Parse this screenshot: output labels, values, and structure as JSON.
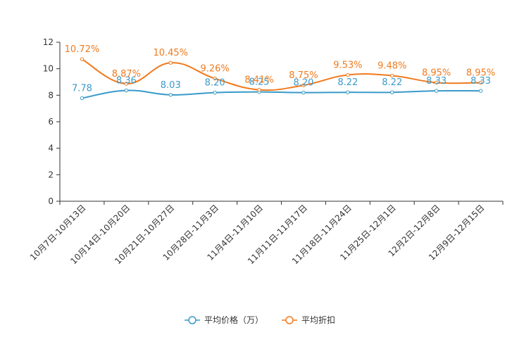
{
  "chart_data": {
    "type": "line",
    "title": "",
    "xlabel": "",
    "ylabel": "",
    "ylim": [
      0,
      12
    ],
    "yticks": [
      0,
      2,
      4,
      6,
      8,
      10,
      12
    ],
    "grid": false,
    "legend_position": "bottom-center",
    "categories": [
      "10月7日-10月13日",
      "10月14日-10月20日",
      "10月21日-10月27日",
      "10月28日-11月3日",
      "11月4日-11月10日",
      "11月11日-11月17日",
      "11月18日-11月24日",
      "11月25日-12月1日",
      "12月2日-12月8日",
      "12月9日-12月15日"
    ],
    "series": [
      {
        "name": "平均价格（万）",
        "color": "#3a9ac9",
        "values": [
          7.78,
          8.36,
          8.03,
          8.2,
          8.25,
          8.2,
          8.22,
          8.22,
          8.33,
          8.33
        ],
        "labels": [
          "7.78",
          "8.36",
          "8.03",
          "8.20",
          "8.25",
          "8.20",
          "8.22",
          "8.22",
          "8.33",
          "8.33"
        ]
      },
      {
        "name": "平均折扣",
        "color": "#f07a1e",
        "values": [
          10.72,
          8.87,
          10.45,
          9.26,
          8.41,
          8.75,
          9.53,
          9.48,
          8.95,
          8.95
        ],
        "labels": [
          "10.72%",
          "8.87%",
          "10.45%",
          "9.26%",
          "8.41%",
          "8.75%",
          "9.53%",
          "9.48%",
          "8.95%",
          "8.95%"
        ]
      }
    ]
  }
}
